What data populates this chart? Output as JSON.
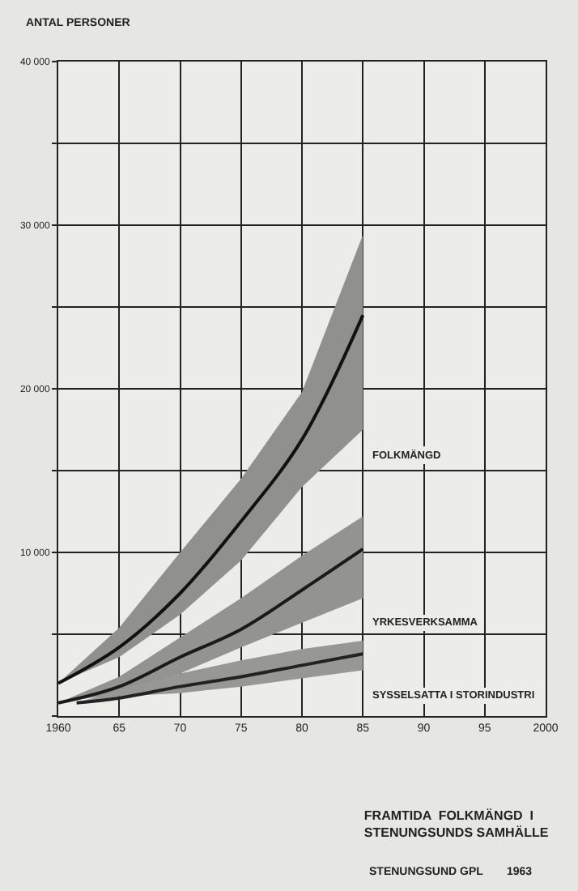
{
  "chart_data": {
    "type": "line",
    "title": "FRAMTIDA  FOLKMÄNGD  I\nSTENUNGSUNDS SAMHÄLLE",
    "ylabel": "ANTAL PERSONER",
    "annotations": [
      "STENUNGSUND GPL",
      "1963"
    ],
    "x": [
      1960,
      1965,
      1970,
      1975,
      1980,
      1985
    ],
    "series": [
      {
        "name": "FOLKMÄNGD",
        "color": "#111111",
        "values": [
          2000,
          4200,
          7500,
          11900,
          16900,
          24500
        ],
        "lower": [
          2000,
          3600,
          6200,
          9500,
          14000,
          17500
        ],
        "upper": [
          2000,
          5400,
          10000,
          14500,
          19800,
          29400
        ]
      },
      {
        "name": "YRKESVERKSAMMA",
        "color": "#1a1a1a",
        "values": [
          800,
          1800,
          3600,
          5300,
          7700,
          10200
        ],
        "lower": [
          800,
          1400,
          2600,
          4200,
          5700,
          7200
        ],
        "upper": [
          800,
          2400,
          4800,
          7200,
          9800,
          12200
        ]
      },
      {
        "name": "SYSSELSATTA I STORINDUSTRI",
        "color": "#222222",
        "x": [
          1961.5,
          1965,
          1970,
          1975,
          1980,
          1985
        ],
        "values": [
          800,
          1100,
          1800,
          2400,
          3100,
          3800
        ],
        "lower": [
          800,
          1200,
          1400,
          1800,
          2300,
          2800
        ],
        "upper": [
          800,
          1600,
          2600,
          3400,
          4100,
          4600
        ]
      }
    ],
    "xlim": [
      1960,
      2000
    ],
    "xticks": [
      {
        "value": 1960,
        "label": "1960"
      },
      {
        "value": 1965,
        "label": "65"
      },
      {
        "value": 1970,
        "label": "70"
      },
      {
        "value": 1975,
        "label": "75"
      },
      {
        "value": 1980,
        "label": "80"
      },
      {
        "value": 1985,
        "label": "85"
      },
      {
        "value": 1990,
        "label": "90"
      },
      {
        "value": 1995,
        "label": "95"
      },
      {
        "value": 2000,
        "label": "2000"
      }
    ],
    "ylim": [
      0,
      40000
    ],
    "yticks": [
      {
        "value": 0,
        "label": null
      },
      {
        "value": 5000,
        "label": null
      },
      {
        "value": 10000,
        "label": "10 000"
      },
      {
        "value": 15000,
        "label": null
      },
      {
        "value": 20000,
        "label": "20 000"
      },
      {
        "value": 25000,
        "label": null
      },
      {
        "value": 30000,
        "label": "30 000"
      },
      {
        "value": 35000,
        "label": null
      },
      {
        "value": 40000,
        "label": "40 000"
      }
    ],
    "grid": true,
    "legend": false,
    "marker": "none",
    "line_style": "solid"
  }
}
